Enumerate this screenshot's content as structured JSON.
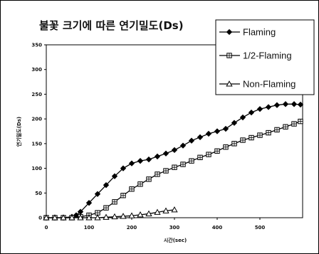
{
  "chart_data": {
    "type": "line",
    "title": "불꽃 크기에 따른 연기밀도(Ds)",
    "xlabel": "시간(sec)",
    "ylabel": "연기밀도(Ds)",
    "xlim": [
      0,
      600
    ],
    "ylim": [
      0,
      350
    ],
    "x_ticks": [
      "0",
      "100",
      "200",
      "300",
      "400",
      "500"
    ],
    "y_ticks": [
      "0",
      "50",
      "100",
      "150",
      "200",
      "250",
      "300",
      "350"
    ],
    "grid": false,
    "legend_position": "top-right",
    "series": [
      {
        "name": "Flaming",
        "marker": "diamond",
        "color": "#000000",
        "x": [
          0,
          20,
          40,
          60,
          70,
          80,
          100,
          120,
          140,
          160,
          180,
          200,
          220,
          240,
          260,
          280,
          300,
          320,
          340,
          360,
          380,
          400,
          420,
          440,
          460,
          480,
          500,
          520,
          540,
          560,
          580,
          595
        ],
        "y": [
          0,
          0,
          0,
          2,
          5,
          12,
          30,
          48,
          66,
          84,
          100,
          110,
          115,
          118,
          124,
          130,
          137,
          146,
          156,
          163,
          170,
          175,
          180,
          192,
          203,
          213,
          220,
          224,
          228,
          230,
          230,
          229
        ]
      },
      {
        "name": "1/2-Flaming",
        "marker": "square",
        "color": "#000000",
        "x": [
          0,
          20,
          40,
          60,
          80,
          100,
          120,
          140,
          160,
          180,
          200,
          220,
          240,
          260,
          280,
          300,
          320,
          340,
          360,
          380,
          400,
          420,
          440,
          460,
          480,
          500,
          520,
          540,
          560,
          580,
          595
        ],
        "y": [
          0,
          0,
          0,
          0,
          2,
          5,
          10,
          20,
          32,
          45,
          58,
          68,
          78,
          88,
          95,
          102,
          108,
          115,
          122,
          128,
          135,
          143,
          150,
          157,
          162,
          167,
          172,
          178,
          184,
          190,
          195
        ]
      },
      {
        "name": "Non-Flaming",
        "marker": "triangle",
        "color": "#000000",
        "x": [
          0,
          20,
          40,
          60,
          80,
          100,
          120,
          140,
          160,
          180,
          200,
          220,
          240,
          260,
          280,
          300
        ],
        "y": [
          0,
          0,
          0,
          0,
          0,
          0,
          0,
          1,
          2,
          3,
          4,
          6,
          8,
          11,
          14,
          16
        ]
      }
    ]
  }
}
